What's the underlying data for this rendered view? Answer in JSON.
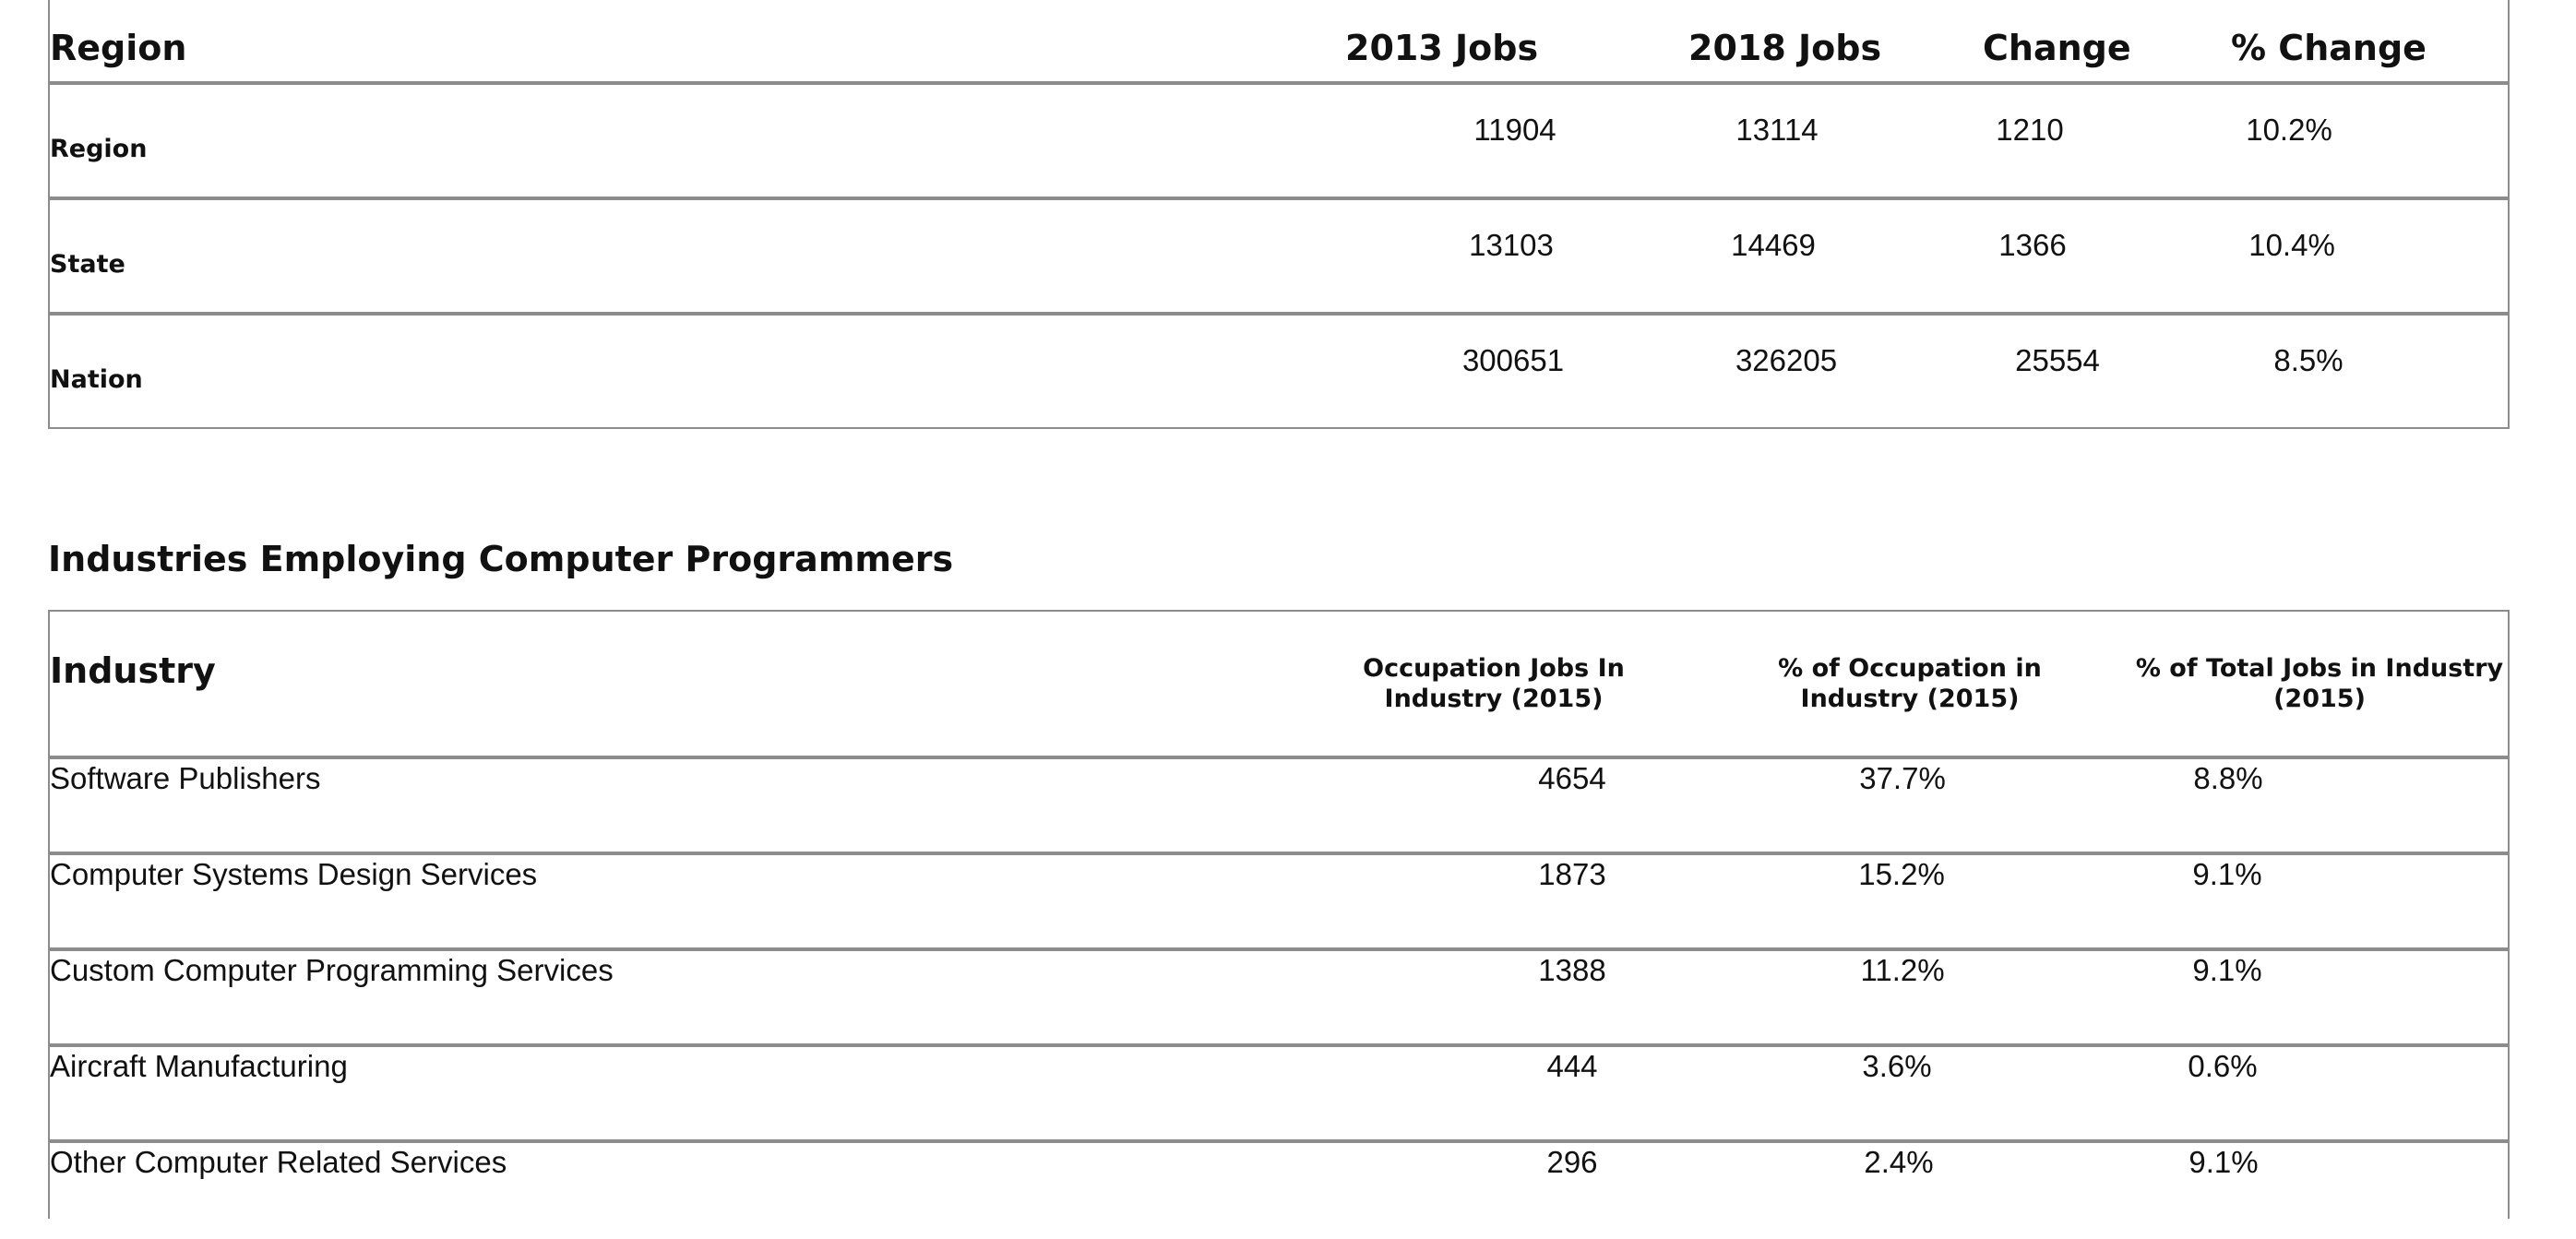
{
  "region_table": {
    "headers": [
      "Region",
      "2013 Jobs",
      "2018 Jobs",
      "Change",
      "% Change"
    ],
    "rows": [
      {
        "label": "Region",
        "jobs_2013": "11904",
        "jobs_2018": "13114",
        "change": "1210",
        "pct_change": "10.2%"
      },
      {
        "label": "State",
        "jobs_2013": "13103",
        "jobs_2018": "14469",
        "change": "1366",
        "pct_change": "10.4%"
      },
      {
        "label": "Nation",
        "jobs_2013": "300651",
        "jobs_2018": "326205",
        "change": "25554",
        "pct_change": "8.5%"
      }
    ]
  },
  "industries_section": {
    "title": "Industries Employing Computer Programmers",
    "headers": [
      "Industry",
      "Occupation Jobs In Industry (2015)",
      "% of Occupation in Industry (2015)",
      "% of Total Jobs in Industry (2015)"
    ],
    "rows": [
      {
        "industry": "Software Publishers",
        "occupation_jobs": "4654",
        "pct_occupation": "37.7%",
        "pct_total": "8.8%"
      },
      {
        "industry": "Computer Systems Design Services",
        "occupation_jobs": "1873",
        "pct_occupation": "15.2%",
        "pct_total": "9.1%"
      },
      {
        "industry": "Custom Computer Programming Services",
        "occupation_jobs": "1388",
        "pct_occupation": "11.2%",
        "pct_total": "9.1%"
      },
      {
        "industry": "Aircraft Manufacturing",
        "occupation_jobs": "444",
        "pct_occupation": "3.6%",
        "pct_total": "0.6%"
      },
      {
        "industry": "Other Computer Related Services",
        "occupation_jobs": "296",
        "pct_occupation": "2.4%",
        "pct_total": "9.1%"
      }
    ]
  }
}
